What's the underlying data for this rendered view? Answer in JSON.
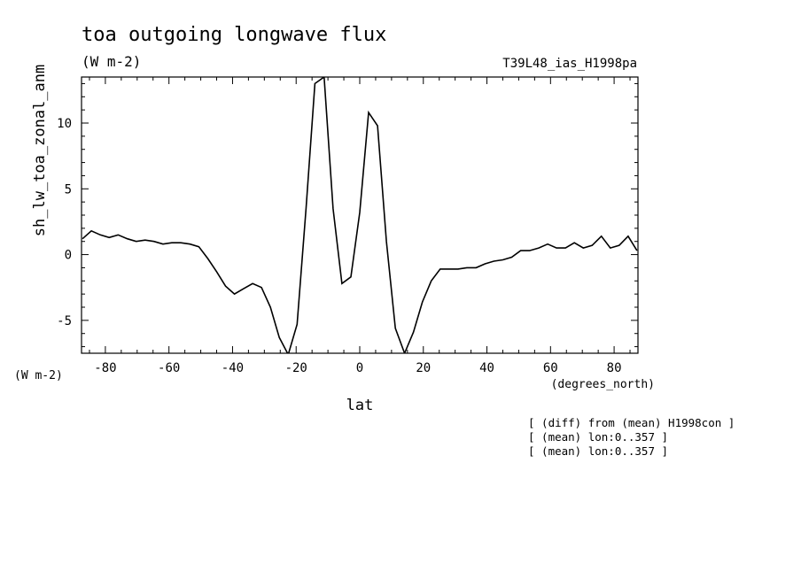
{
  "chart_data": {
    "type": "line",
    "title": "toa outgoing longwave flux",
    "subtitle": "(W m-2)",
    "run_label": "T39L48_ias_H1998pa",
    "xlabel": "lat",
    "x_units": "(degrees_north)",
    "ylabel": "sh_lw_toa_zonal_anm",
    "y_units": "(W m-2)",
    "xlim": [
      -87.5,
      87.5
    ],
    "ylim": [
      -7.5,
      13.5
    ],
    "x_ticks": [
      -80,
      -60,
      -40,
      -20,
      0,
      20,
      40,
      60,
      80
    ],
    "x_tick_labels": [
      "-80",
      "-60",
      "-40",
      "-20",
      "0",
      "20",
      "40",
      "60",
      "80"
    ],
    "y_ticks": [
      -5,
      0,
      5,
      10
    ],
    "y_tick_labels": [
      "-5",
      "0",
      "5",
      "10"
    ],
    "grid": false,
    "notes": [
      "[ (diff) from (mean) H1998con ]",
      "[ (mean) lon:0..357 ]",
      "[ (mean) lon:0..357 ]"
    ],
    "series": [
      {
        "x": [
          -87.2,
          -84.4,
          -81.6,
          -78.8,
          -76.0,
          -73.1,
          -70.3,
          -67.5,
          -64.7,
          -61.9,
          -59.1,
          -56.3,
          -53.4,
          -50.6,
          -47.8,
          -45.0,
          -42.2,
          -39.4,
          -36.6,
          -33.7,
          -30.9,
          -28.1,
          -25.3,
          -22.5,
          -19.7,
          -16.9,
          -14.1,
          -11.2,
          -8.4,
          -5.6,
          -2.8,
          0.0,
          2.8,
          5.6,
          8.4,
          11.2,
          14.1,
          16.9,
          19.7,
          22.5,
          25.3,
          28.1,
          30.9,
          33.7,
          36.6,
          39.4,
          42.2,
          45.0,
          47.8,
          50.6,
          53.4,
          56.3,
          59.1,
          61.9,
          64.7,
          67.5,
          70.3,
          73.1,
          76.0,
          78.8,
          81.6,
          84.4,
          87.2
        ],
        "values": [
          1.2,
          1.8,
          1.5,
          1.3,
          1.5,
          1.2,
          1.0,
          1.1,
          1.0,
          0.8,
          0.9,
          0.9,
          0.8,
          0.6,
          -0.3,
          -1.3,
          -2.4,
          -3.0,
          -2.6,
          -2.2,
          -2.5,
          -4.0,
          -6.3,
          -7.6,
          -5.3,
          3.5,
          13.0,
          13.5,
          3.5,
          -2.2,
          -1.7,
          3.2,
          10.8,
          9.8,
          1.0,
          -5.6,
          -7.5,
          -5.9,
          -3.6,
          -2.0,
          -1.1,
          -1.1,
          -1.1,
          -1.0,
          -1.0,
          -0.7,
          -0.5,
          -0.4,
          -0.2,
          0.3,
          0.3,
          0.5,
          0.8,
          0.5,
          0.5,
          0.9,
          0.5,
          0.7,
          1.4,
          0.5,
          0.7,
          1.4,
          0.3
        ]
      }
    ]
  }
}
